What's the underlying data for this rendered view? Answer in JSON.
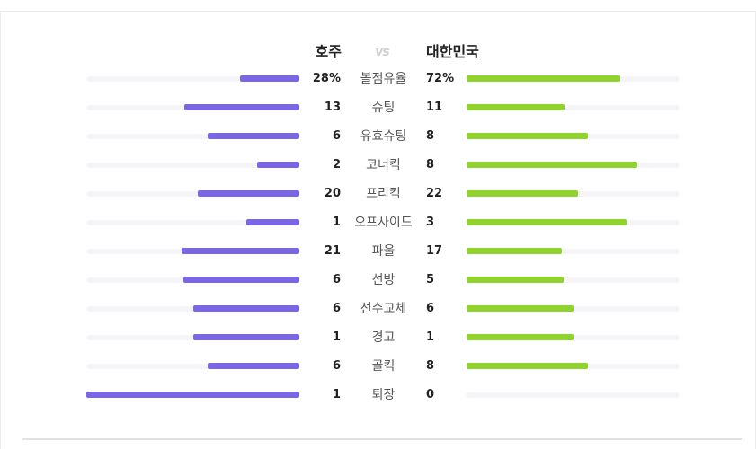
{
  "teams": {
    "home": "호주",
    "vs": "vs",
    "away": "대한민국"
  },
  "colors": {
    "home": "#7b66e6",
    "away": "#8fd42e",
    "track": "#f5f5f7"
  },
  "chart_data": {
    "type": "bar",
    "layout": "diverging-horizontal",
    "series": [
      {
        "name": "호주",
        "values": [
          28,
          13,
          6,
          2,
          20,
          1,
          21,
          6,
          6,
          1,
          6,
          1
        ]
      },
      {
        "name": "대한민국",
        "values": [
          72,
          11,
          8,
          8,
          22,
          3,
          17,
          5,
          6,
          1,
          8,
          0
        ]
      }
    ],
    "categories": [
      "볼점유율",
      "슈팅",
      "유효슈팅",
      "코너킥",
      "프리킥",
      "오프사이드",
      "파울",
      "선방",
      "선수교체",
      "경고",
      "골킥",
      "퇴장"
    ],
    "rows": [
      {
        "label": "볼점유율",
        "home": "28%",
        "away": "72%",
        "home_value": 28,
        "away_value": 72
      },
      {
        "label": "슈팅",
        "home": "13",
        "away": "11",
        "home_value": 13,
        "away_value": 11
      },
      {
        "label": "유효슈팅",
        "home": "6",
        "away": "8",
        "home_value": 6,
        "away_value": 8
      },
      {
        "label": "코너킥",
        "home": "2",
        "away": "8",
        "home_value": 2,
        "away_value": 8
      },
      {
        "label": "프리킥",
        "home": "20",
        "away": "22",
        "home_value": 20,
        "away_value": 22
      },
      {
        "label": "오프사이드",
        "home": "1",
        "away": "3",
        "home_value": 1,
        "away_value": 3
      },
      {
        "label": "파울",
        "home": "21",
        "away": "17",
        "home_value": 21,
        "away_value": 17
      },
      {
        "label": "선방",
        "home": "6",
        "away": "5",
        "home_value": 6,
        "away_value": 5
      },
      {
        "label": "선수교체",
        "home": "6",
        "away": "6",
        "home_value": 6,
        "away_value": 6
      },
      {
        "label": "경고",
        "home": "1",
        "away": "1",
        "home_value": 1,
        "away_value": 1
      },
      {
        "label": "골킥",
        "home": "6",
        "away": "8",
        "home_value": 6,
        "away_value": 8
      },
      {
        "label": "퇴장",
        "home": "1",
        "away": "0",
        "home_value": 1,
        "away_value": 0
      }
    ]
  }
}
